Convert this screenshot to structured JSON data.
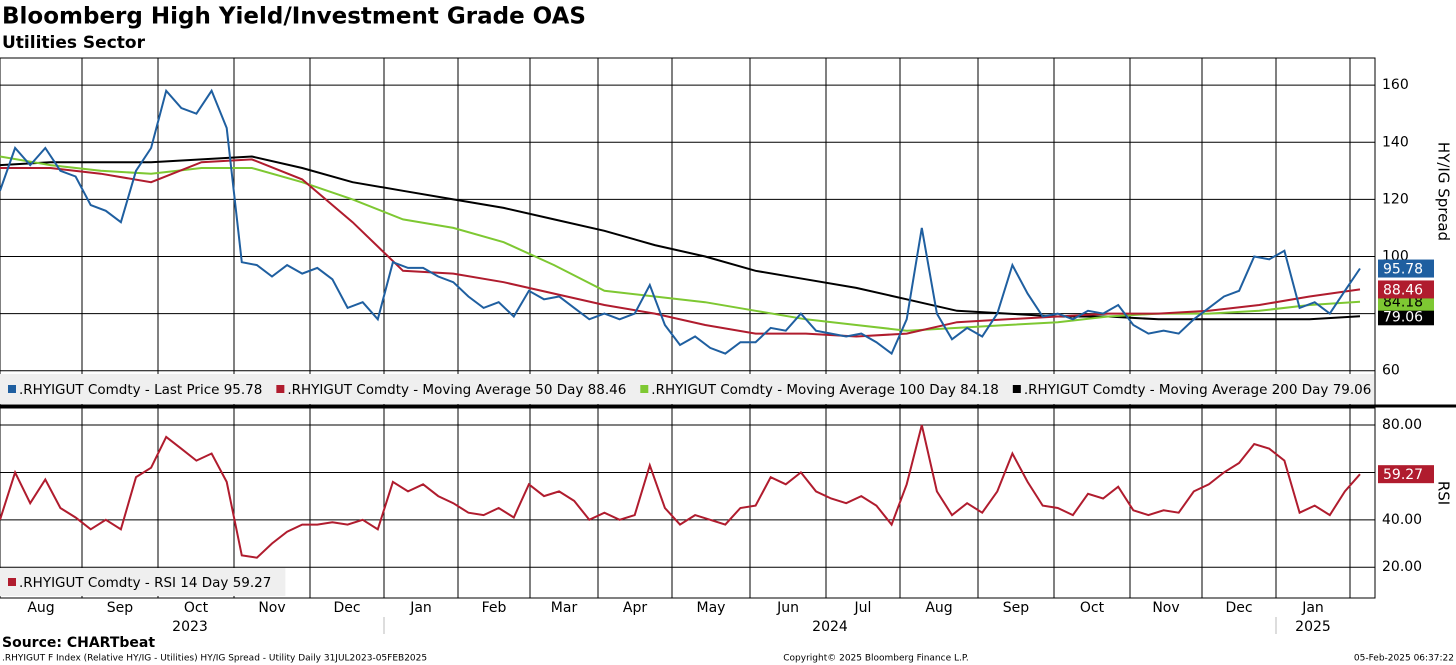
{
  "title": "Bloomberg High Yield/Investment Grade OAS",
  "subtitle": "Utilities Sector",
  "x_axis": {
    "months": [
      "Aug",
      "Sep",
      "Oct",
      "Nov",
      "Dec",
      "Jan",
      "Feb",
      "Mar",
      "Apr",
      "May",
      "Jun",
      "Jul",
      "Aug",
      "Sep",
      "Oct",
      "Nov",
      "Dec",
      "Jan"
    ],
    "years": [
      "2023",
      "2024",
      "2025"
    ]
  },
  "chart_data": [
    {
      "type": "line",
      "y_label": "HY/IG Spread",
      "ylim": [
        48,
        169.5
      ],
      "yticks": [
        60,
        80,
        100,
        120,
        140,
        160
      ],
      "grid": true,
      "series": [
        {
          "name": ".RHYIGUT Comdty - Last Price 95.78",
          "color": "#1f5fa0",
          "values": [
            123,
            138,
            132,
            138,
            130,
            128,
            118,
            116,
            112,
            130,
            138,
            158,
            152,
            150,
            158,
            145,
            98,
            97,
            93,
            97,
            94,
            96,
            92,
            82,
            84,
            78,
            98,
            96,
            96,
            93,
            91,
            86,
            82,
            84,
            79,
            88,
            85,
            86,
            82,
            78,
            80,
            78,
            80,
            90,
            76,
            69,
            72,
            68,
            66,
            70,
            70,
            75,
            74,
            80,
            74,
            73,
            72,
            73,
            70,
            66,
            78,
            110,
            80,
            71,
            75,
            72,
            80,
            97,
            87,
            79,
            80,
            78,
            81,
            80,
            83,
            76,
            73,
            74,
            73,
            78,
            82,
            86,
            88,
            100,
            99,
            102,
            82,
            84,
            80,
            88,
            95.78
          ]
        },
        {
          "name": ".RHYIGUT Comdty - Moving Average 50 Day 88.46",
          "color": "#b01c2e",
          "values": [
            131,
            131,
            129,
            126,
            133,
            134,
            127,
            112,
            95,
            94,
            91,
            87,
            83,
            80,
            76,
            73,
            73,
            72,
            73,
            77,
            78,
            79,
            80,
            80,
            81,
            83,
            86,
            88.46
          ]
        },
        {
          "name": ".RHYIGUT Comdty - Moving Average 100 Day 84.18",
          "color": "#7ec832",
          "values": [
            135,
            132,
            130,
            129,
            131,
            131,
            126,
            120,
            113,
            110,
            105,
            97,
            88,
            86,
            84,
            81,
            78,
            76,
            74,
            75,
            76,
            77,
            79,
            80,
            80,
            81,
            83,
            84.18
          ]
        },
        {
          "name": ".RHYIGUT Comdty - Moving Average 200 Day 79.06",
          "color": "#000000",
          "values": [
            132,
            133,
            133,
            133,
            134,
            135,
            131,
            126,
            123,
            120,
            117,
            113,
            109,
            104,
            100,
            95,
            92,
            89,
            85,
            81,
            80,
            79,
            79,
            78,
            78,
            78,
            78,
            79.06
          ]
        }
      ]
    },
    {
      "type": "line",
      "y_label": "RSI",
      "ylim": [
        7,
        87.2
      ],
      "yticks": [
        {
          "value": 20,
          "label": "20.00"
        },
        {
          "value": 40,
          "label": "40.00"
        },
        {
          "value": 60,
          "label": "60.00"
        },
        {
          "value": 80,
          "label": "80.00"
        }
      ],
      "grid": true,
      "series": [
        {
          "name": ".RHYIGUT Comdty - RSI 14 Day 59.27",
          "color": "#b01c2e",
          "values": [
            40,
            60,
            47,
            57,
            45,
            41,
            36,
            40,
            36,
            58,
            62,
            75,
            70,
            65,
            68,
            56,
            25,
            24,
            30,
            35,
            38,
            38,
            39,
            38,
            40,
            36,
            56,
            52,
            55,
            50,
            47,
            43,
            42,
            45,
            41,
            55,
            50,
            52,
            48,
            40,
            43,
            40,
            42,
            63,
            45,
            38,
            42,
            40,
            38,
            45,
            46,
            58,
            55,
            60,
            52,
            49,
            47,
            50,
            46,
            38,
            55,
            80,
            52,
            42,
            47,
            43,
            52,
            68,
            56,
            46,
            45,
            42,
            51,
            49,
            54,
            44,
            42,
            44,
            43,
            52,
            55,
            60,
            64,
            72,
            70,
            65,
            43,
            46,
            42,
            52,
            59.27
          ]
        }
      ]
    }
  ],
  "footer": {
    "source": "Source: CHARTbeat",
    "description": ".RHYIGUT F Index (Relative HY/IG - Utilities) HY/IG Spread - Utility  Daily 31JUL2023-05FEB2025",
    "copyright": "Copyright© 2025 Bloomberg Finance L.P.",
    "timestamp": "05-Feb-2025 06:37:22"
  }
}
